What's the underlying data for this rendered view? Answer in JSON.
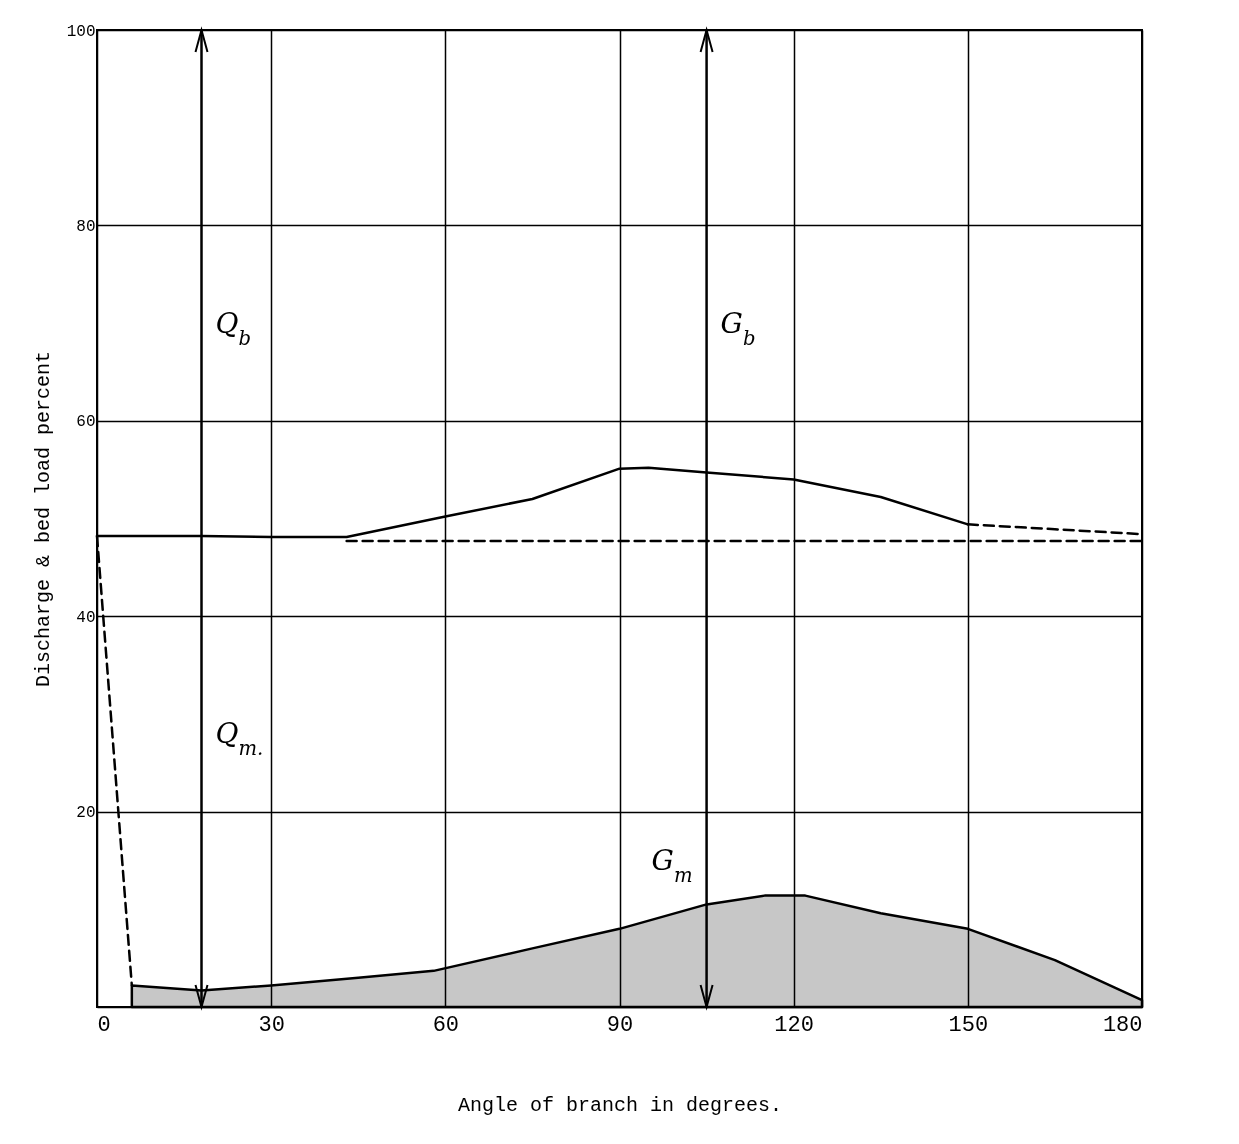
{
  "chart_data": {
    "type": "line",
    "xlabel": "Angle of branch in degrees.",
    "ylabel": "Discharge & bed load percent",
    "ref_lines": [
      {
        "axis": "x",
        "value": 18,
        "color": "#000000"
      },
      {
        "axis": "x",
        "value": 105,
        "color": "#000000"
      }
    ],
    "xlim": [
      0,
      180
    ],
    "xticks": [
      0,
      30,
      60,
      90,
      120,
      150,
      180
    ],
    "ylim": [
      0,
      100
    ],
    "yticks": [
      {
        "value": 0,
        "label": null
      },
      20,
      40,
      60,
      80,
      100
    ],
    "grid": true,
    "series": [
      {
        "color": "#000000",
        "line_style": "solid",
        "x": [
          0,
          18,
          30,
          43,
          60,
          75,
          90,
          95,
          105,
          120,
          135,
          150
        ],
        "values": [
          48.2,
          48.2,
          48.1,
          48.1,
          50.2,
          52,
          55.1,
          55.2,
          54.7,
          54,
          52.2,
          49.4
        ]
      },
      {
        "color": "#000000",
        "line_style": "dashed",
        "x": [
          150,
          165,
          180
        ],
        "values": [
          49.4,
          48.9,
          48.4
        ]
      },
      {
        "color": "#000000",
        "line_style": "dashed",
        "x": [
          43,
          90,
          150,
          180
        ],
        "values": [
          47.7,
          47.7,
          47.7,
          47.7
        ]
      },
      {
        "color": "#000000",
        "line_style": "dashed",
        "x": [
          0,
          6
        ],
        "values": [
          48.2,
          2.2
        ]
      },
      {
        "type": "area",
        "color": "#000000",
        "x": [
          6,
          18,
          30,
          45,
          58,
          75,
          90,
          105,
          115,
          122,
          135,
          150,
          165,
          180
        ],
        "values": [
          2.2,
          1.7,
          2.2,
          3,
          3.7,
          6,
          8,
          10.5,
          11.4,
          11.4,
          9.6,
          8,
          4.8,
          0.7
        ]
      }
    ],
    "annotations": [
      "Q$_{b}$",
      "Q$_{m.}$",
      "G$_{b}$",
      "G$_{m}$"
    ]
  }
}
